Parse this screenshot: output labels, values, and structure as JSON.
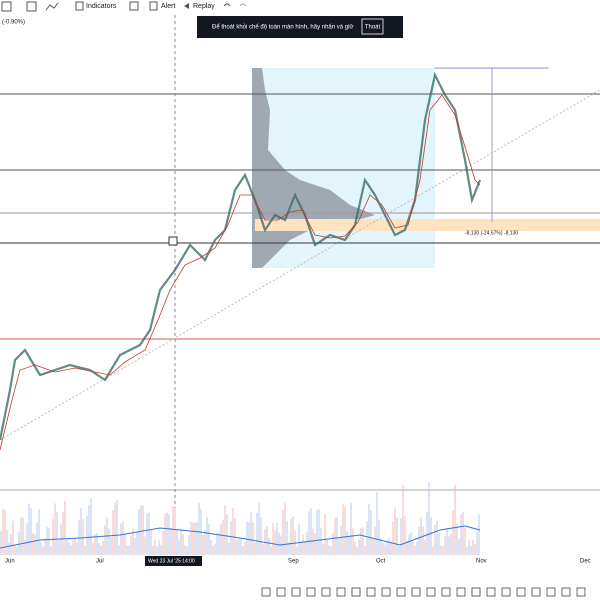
{
  "toolbar": {
    "indicators": "Indicators",
    "alert": "Alert",
    "replay": "Replay"
  },
  "banner": {
    "text": "Để thoát khỏi chế độ toàn màn hình, hãy nhấn và giữ",
    "button": "Thoát"
  },
  "chart": {
    "change_label": "(-0.90%)",
    "measure_label": "-8,130 (-24.67%) -8,130"
  },
  "time_axis": {
    "labels": [
      "Jun",
      "Jul",
      "Wed 23 Jul '25  14:00",
      "Sep",
      "Oct",
      "Nov",
      "Dec"
    ]
  }
}
